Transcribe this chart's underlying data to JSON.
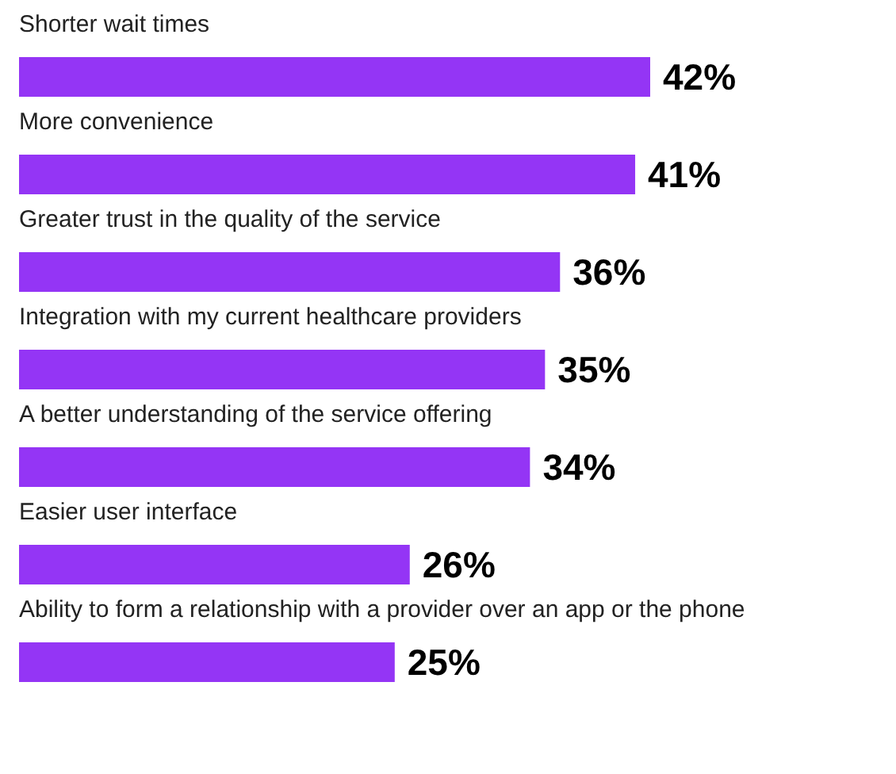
{
  "chart_data": {
    "type": "bar",
    "orientation": "horizontal",
    "categories": [
      "Shorter wait times",
      "More convenience",
      "Greater trust in the quality of the service",
      "Integration with my current healthcare providers",
      "A better understanding of the service offering",
      "Easier user interface",
      "Ability to form a relationship with a provider over an app or the phone"
    ],
    "values": [
      42,
      41,
      36,
      35,
      34,
      26,
      25
    ],
    "value_labels": [
      "42%",
      "41%",
      "36%",
      "35%",
      "34%",
      "26%",
      "25%"
    ],
    "color": "#9435f5"
  }
}
